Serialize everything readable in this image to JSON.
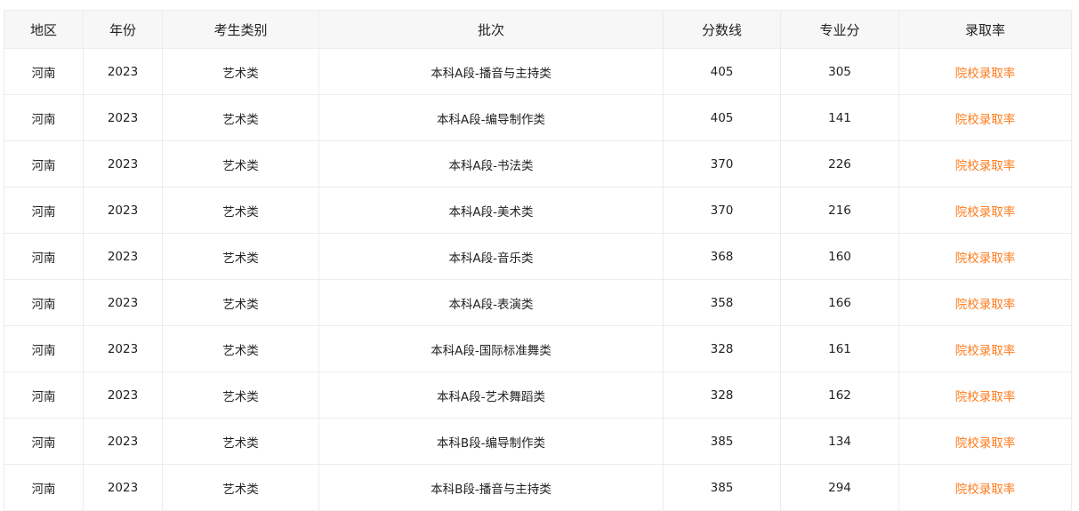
{
  "colors": {
    "link": "#ff7a1a",
    "header_bg": "#f7f7f7",
    "border": "#ececec"
  },
  "table": {
    "headers": [
      "地区",
      "年份",
      "考生类别",
      "批次",
      "分数线",
      "专业分",
      "录取率"
    ],
    "rows": [
      [
        "河南",
        "2023",
        "艺术类",
        "本科A段-播音与主持类",
        "405",
        "305",
        "院校录取率"
      ],
      [
        "河南",
        "2023",
        "艺术类",
        "本科A段-编导制作类",
        "405",
        "141",
        "院校录取率"
      ],
      [
        "河南",
        "2023",
        "艺术类",
        "本科A段-书法类",
        "370",
        "226",
        "院校录取率"
      ],
      [
        "河南",
        "2023",
        "艺术类",
        "本科A段-美术类",
        "370",
        "216",
        "院校录取率"
      ],
      [
        "河南",
        "2023",
        "艺术类",
        "本科A段-音乐类",
        "368",
        "160",
        "院校录取率"
      ],
      [
        "河南",
        "2023",
        "艺术类",
        "本科A段-表演类",
        "358",
        "166",
        "院校录取率"
      ],
      [
        "河南",
        "2023",
        "艺术类",
        "本科A段-国际标准舞类",
        "328",
        "161",
        "院校录取率"
      ],
      [
        "河南",
        "2023",
        "艺术类",
        "本科A段-艺术舞蹈类",
        "328",
        "162",
        "院校录取率"
      ],
      [
        "河南",
        "2023",
        "艺术类",
        "本科B段-编导制作类",
        "385",
        "134",
        "院校录取率"
      ],
      [
        "河南",
        "2023",
        "艺术类",
        "本科B段-播音与主持类",
        "385",
        "294",
        "院校录取率"
      ]
    ]
  }
}
